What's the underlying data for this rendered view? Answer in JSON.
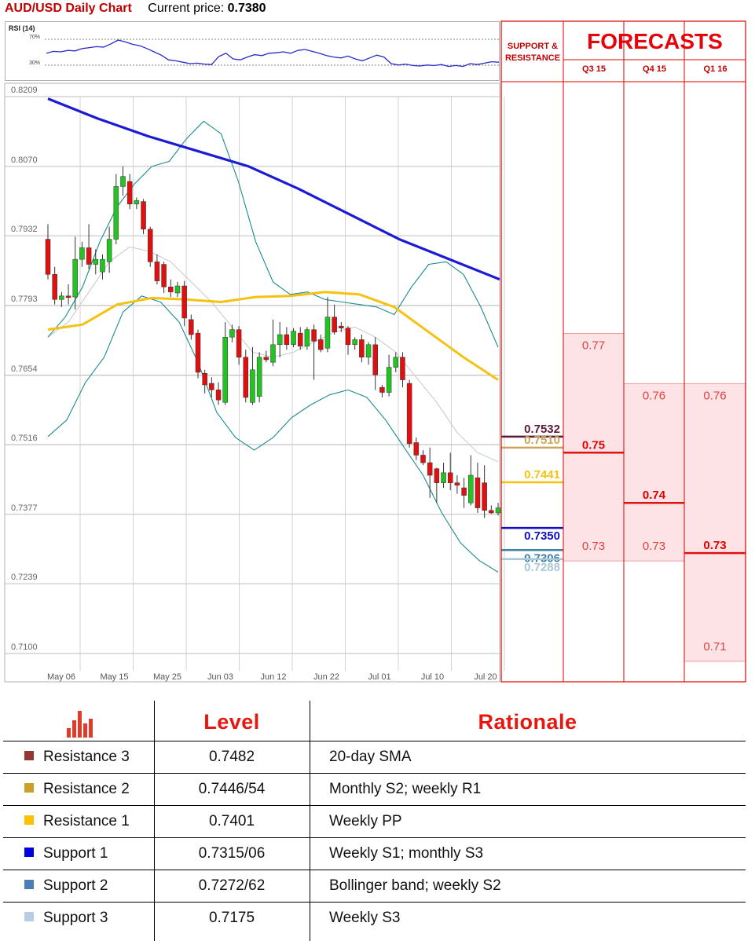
{
  "header": {
    "title": "AUD/USD Daily Chart",
    "price_label": "Current price:",
    "price_value": "0.7380"
  },
  "rsi": {
    "label": "RSI (14)",
    "level_70": "70%",
    "level_30": "30%",
    "values": [
      0.52,
      0.56,
      0.55,
      0.58,
      0.57,
      0.62,
      0.64,
      0.66,
      0.65,
      0.72,
      0.8,
      0.76,
      0.71,
      0.68,
      0.62,
      0.55,
      0.48,
      0.38,
      0.36,
      0.33,
      0.3,
      0.31,
      0.29,
      0.28,
      0.45,
      0.52,
      0.4,
      0.38,
      0.44,
      0.49,
      0.47,
      0.52,
      0.53,
      0.55,
      0.52,
      0.58,
      0.6,
      0.56,
      0.52,
      0.47,
      0.44,
      0.42,
      0.46,
      0.4,
      0.36,
      0.42,
      0.48,
      0.44,
      0.3,
      0.27,
      0.29,
      0.26,
      0.25,
      0.27,
      0.26,
      0.28,
      0.24,
      0.26,
      0.24,
      0.3,
      0.28,
      0.31,
      0.34,
      0.33
    ]
  },
  "chart_data": {
    "type": "candlestick",
    "title": "AUD/USD Daily Chart",
    "y_ticks": [
      "0.8209",
      "0.8070",
      "0.7932",
      "0.7793",
      "0.7654",
      "0.7516",
      "0.7377",
      "0.7239",
      "0.7100"
    ],
    "ylim": [
      0.71,
      0.8209
    ],
    "x_ticks": [
      "May 06",
      "May 15",
      "May 25",
      "Jun 03",
      "Jun 12",
      "Jun 22",
      "Jul 01",
      "Jul 10",
      "Jul 20"
    ],
    "candles": [
      [
        0.7925,
        0.7855,
        0.7955,
        0.7845
      ],
      [
        0.7855,
        0.7805,
        0.787,
        0.7795
      ],
      [
        0.7805,
        0.7812,
        0.782,
        0.779
      ],
      [
        0.7812,
        0.781,
        0.7835,
        0.7795
      ],
      [
        0.781,
        0.7885,
        0.793,
        0.7785
      ],
      [
        0.7885,
        0.7908,
        0.792,
        0.787
      ],
      [
        0.7908,
        0.7875,
        0.7955,
        0.7865
      ],
      [
        0.7875,
        0.7885,
        0.7905,
        0.7855
      ],
      [
        0.786,
        0.7885,
        0.7895,
        0.7845
      ],
      [
        0.788,
        0.7925,
        0.795,
        0.7858
      ],
      [
        0.7925,
        0.803,
        0.8055,
        0.7915
      ],
      [
        0.803,
        0.805,
        0.807,
        0.8012
      ],
      [
        0.804,
        0.7995,
        0.8055,
        0.7985
      ],
      [
        0.7995,
        0.8002,
        0.8008,
        0.7985
      ],
      [
        0.8,
        0.7945,
        0.8005,
        0.7935
      ],
      [
        0.7945,
        0.788,
        0.795,
        0.787
      ],
      [
        0.788,
        0.7842,
        0.7895,
        0.7835
      ],
      [
        0.7875,
        0.783,
        0.788,
        0.7818
      ],
      [
        0.783,
        0.782,
        0.7845,
        0.781
      ],
      [
        0.7818,
        0.7832,
        0.784,
        0.781
      ],
      [
        0.7832,
        0.7768,
        0.7842,
        0.7752
      ],
      [
        0.7765,
        0.7735,
        0.7775,
        0.7725
      ],
      [
        0.7738,
        0.766,
        0.7745,
        0.7648
      ],
      [
        0.7658,
        0.7635,
        0.7665,
        0.7618
      ],
      [
        0.7638,
        0.7625,
        0.765,
        0.761
      ],
      [
        0.7625,
        0.7605,
        0.764,
        0.7595
      ],
      [
        0.76,
        0.773,
        0.776,
        0.7595
      ],
      [
        0.773,
        0.7745,
        0.7755,
        0.772
      ],
      [
        0.7745,
        0.769,
        0.7752,
        0.7675
      ],
      [
        0.769,
        0.761,
        0.7705,
        0.76
      ],
      [
        0.76,
        0.7665,
        0.771,
        0.7595
      ],
      [
        0.7612,
        0.769,
        0.77,
        0.76
      ],
      [
        0.769,
        0.7685,
        0.7703,
        0.768
      ],
      [
        0.768,
        0.7715,
        0.7765,
        0.7672
      ],
      [
        0.7715,
        0.7735,
        0.776,
        0.769
      ],
      [
        0.7735,
        0.7715,
        0.775,
        0.7705
      ],
      [
        0.7715,
        0.7742,
        0.7748,
        0.771
      ],
      [
        0.7738,
        0.7712,
        0.775,
        0.7705
      ],
      [
        0.7712,
        0.7745,
        0.775,
        0.7705
      ],
      [
        0.7745,
        0.7722,
        0.7755,
        0.7645
      ],
      [
        0.7725,
        0.7705,
        0.7735,
        0.77
      ],
      [
        0.7708,
        0.777,
        0.781,
        0.77
      ],
      [
        0.777,
        0.774,
        0.7795,
        0.7735
      ],
      [
        0.7752,
        0.7748,
        0.776,
        0.774
      ],
      [
        0.7748,
        0.7715,
        0.7752,
        0.7695
      ],
      [
        0.7715,
        0.7725,
        0.773,
        0.7705
      ],
      [
        0.7725,
        0.769,
        0.7735,
        0.768
      ],
      [
        0.769,
        0.7715,
        0.772,
        0.7675
      ],
      [
        0.7715,
        0.7655,
        0.773,
        0.7625
      ],
      [
        0.763,
        0.762,
        0.7635,
        0.761
      ],
      [
        0.762,
        0.767,
        0.7695,
        0.7612
      ],
      [
        0.767,
        0.769,
        0.77,
        0.766
      ],
      [
        0.769,
        0.7645,
        0.77,
        0.763
      ],
      [
        0.7638,
        0.7518,
        0.7645,
        0.751
      ],
      [
        0.752,
        0.7495,
        0.753,
        0.7485
      ],
      [
        0.7495,
        0.748,
        0.7505,
        0.7475
      ],
      [
        0.748,
        0.7455,
        0.751,
        0.741
      ],
      [
        0.7468,
        0.744,
        0.747,
        0.74
      ],
      [
        0.744,
        0.746,
        0.748,
        0.743
      ],
      [
        0.746,
        0.744,
        0.75,
        0.7425
      ],
      [
        0.744,
        0.7435,
        0.7455,
        0.7418
      ],
      [
        0.743,
        0.7415,
        0.745,
        0.739
      ],
      [
        0.74,
        0.7455,
        0.7495,
        0.7395
      ],
      [
        0.745,
        0.739,
        0.748,
        0.738
      ],
      [
        0.744,
        0.7385,
        0.7475,
        0.737
      ],
      [
        0.7385,
        0.738,
        0.7395,
        0.7378
      ],
      [
        0.738,
        0.739,
        0.74,
        0.7375
      ]
    ],
    "indicators": {
      "sma_200": {
        "color": "#1b1bd6",
        "values": [
          0.8205,
          0.8165,
          0.813,
          0.81,
          0.807,
          0.8025,
          0.7975,
          0.7925,
          0.7885,
          0.7845
        ]
      },
      "sma_50": {
        "color": "#f5c211",
        "values": [
          0.7745,
          0.7755,
          0.7795,
          0.7808,
          0.7805,
          0.78,
          0.781,
          0.7812,
          0.782,
          0.7815,
          0.779,
          0.774,
          0.769,
          0.7645
        ]
      },
      "bollinger_upper": {
        "color": "#1a8a8a",
        "values": [
          0.773,
          0.777,
          0.783,
          0.792,
          0.799,
          0.8035,
          0.807,
          0.808,
          0.8125,
          0.816,
          0.8135,
          0.804,
          0.792,
          0.784,
          0.7815,
          0.782,
          0.7805,
          0.78,
          0.7795,
          0.779,
          0.7775,
          0.783,
          0.7875,
          0.788,
          0.7855,
          0.779,
          0.771
        ]
      },
      "bollinger_lower": {
        "color": "#1a8a8a",
        "values": [
          0.7532,
          0.7565,
          0.764,
          0.769,
          0.778,
          0.7812,
          0.78,
          0.776,
          0.768,
          0.758,
          0.753,
          0.7505,
          0.753,
          0.757,
          0.7595,
          0.7615,
          0.7625,
          0.761,
          0.7565,
          0.751,
          0.7455,
          0.738,
          0.732,
          0.7285,
          0.7262
        ]
      },
      "bollinger_mid": {
        "color": "#c8c8c8",
        "values": [
          0.773,
          0.776,
          0.782,
          0.788,
          0.791,
          0.79,
          0.788,
          0.784,
          0.78,
          0.775,
          0.77,
          0.769,
          0.77,
          0.772,
          0.774,
          0.775,
          0.773,
          0.77,
          0.765,
          0.76,
          0.754,
          0.75,
          0.7482
        ]
      }
    },
    "levels": [
      {
        "value": 0.7532,
        "label": "0.7532",
        "color": "#5c1a3a"
      },
      {
        "value": 0.751,
        "label": "0.7510",
        "color": "#c9a45c"
      },
      {
        "value": 0.7441,
        "label": "0.7441",
        "color": "#f5c211"
      },
      {
        "value": 0.735,
        "label": "0.7350",
        "color": "#1010c0"
      },
      {
        "value": 0.7306,
        "label": "0.7306",
        "color": "#3d7ea6"
      },
      {
        "value": 0.7288,
        "label": "0.7288",
        "color": "#a8c8d8"
      }
    ]
  },
  "forecasts": {
    "title": "FORECASTS",
    "sr_header": "SUPPORT & RESISTANCE",
    "columns": [
      {
        "label": "Q3 15",
        "high": "0.77",
        "mid": "0.75",
        "low": "0.73",
        "high_value": 0.77,
        "mid_value": 0.75,
        "low_value": 0.73
      },
      {
        "label": "Q4 15",
        "high": "0.76",
        "mid": "0.74",
        "low": "0.73",
        "high_value": 0.76,
        "mid_value": 0.74,
        "low_value": 0.73
      },
      {
        "label": "Q1 16",
        "high": "0.76",
        "mid": "0.73",
        "low": "0.71",
        "high_value": 0.76,
        "mid_value": 0.73,
        "low_value": 0.71
      }
    ]
  },
  "table": {
    "header_level": "Level",
    "header_rationale": "Rationale",
    "rows": [
      {
        "name": "Resistance 3",
        "level": "0.7482",
        "rationale": "20-day SMA",
        "color": "#943634"
      },
      {
        "name": "Resistance 2",
        "level": "0.7446/54",
        "rationale": "Monthly S2; weekly R1",
        "color": "#c9a227"
      },
      {
        "name": "Resistance 1",
        "level": "0.7401",
        "rationale": "Weekly PP",
        "color": "#ffc000"
      },
      {
        "name": "Support 1",
        "level": "0.7315/06",
        "rationale": "Weekly S1; monthly S3",
        "color": "#0000e0"
      },
      {
        "name": "Support 2",
        "level": "0.7272/62",
        "rationale": "Bollinger band; weekly S2",
        "color": "#4a7eb5"
      },
      {
        "name": "Support 3",
        "level": "0.7175",
        "rationale": "Weekly S3",
        "color": "#b8cce4"
      }
    ]
  }
}
